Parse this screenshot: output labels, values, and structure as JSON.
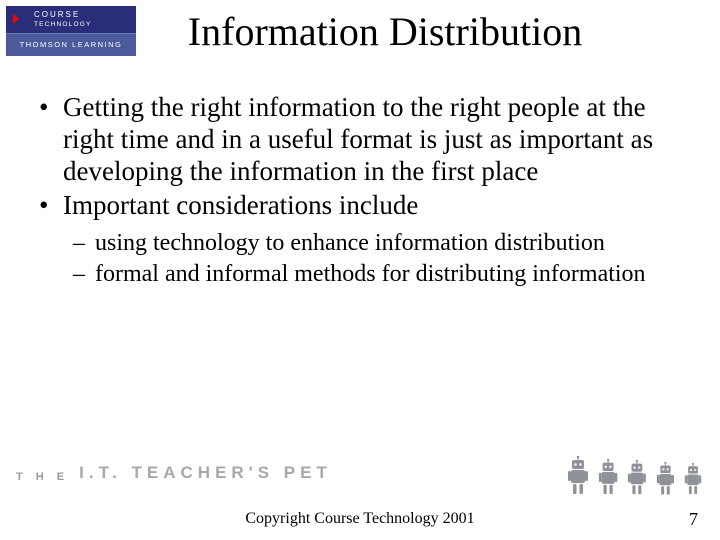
{
  "logo": {
    "top_text": "COURSE",
    "top_sub": "TECHNOLOGY",
    "bottom_text": "THOMSON LEARNING",
    "top_bg": "#2a2e7a",
    "bottom_bg": "#4a5a9a",
    "triangle_color": "#ff0000"
  },
  "title": "Information Distribution",
  "bullets": {
    "level1": [
      "Getting the right information to the right people at the right time and in a useful format is just as important as developing the information in the first place",
      "Important considerations include"
    ],
    "level2": [
      "using technology to enhance information distribution",
      "formal and informal methods for distributing information"
    ]
  },
  "footer_brand": {
    "first": "T H E",
    "rest": "I.T. TEACHER'S PET"
  },
  "copyright": "Copyright Course Technology 2001",
  "page_number": "7",
  "robot_color": "#8f9298",
  "robot_count": 5,
  "colors": {
    "text": "#000000",
    "bg": "#ffffff",
    "brand_gray": "#a8a8a8"
  },
  "fonts": {
    "title_size_pt": 40,
    "body_size_pt": 27,
    "sub_size_pt": 24,
    "copyright_size_pt": 16
  }
}
